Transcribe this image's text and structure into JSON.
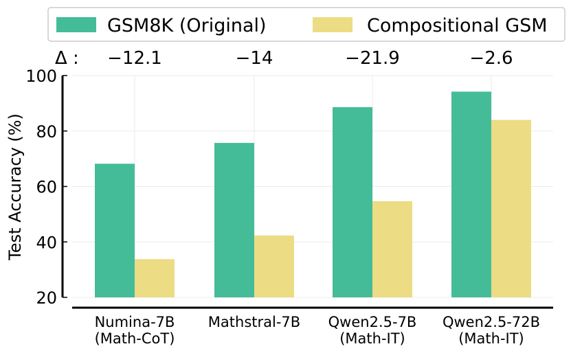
{
  "chart_data": {
    "type": "bar",
    "title": "",
    "xlabel": "",
    "ylabel": "Test Accuracy (%)",
    "ylim": [
      20,
      100
    ],
    "yticks": [
      "20",
      "40",
      "60",
      "80",
      "100"
    ],
    "grid": true,
    "legend_position": "top",
    "categories": [
      [
        "Numina-7B",
        "(Math-CoT)"
      ],
      [
        "Mathstral-7B",
        ""
      ],
      [
        "Qwen2.5-7B",
        "(Math-IT)"
      ],
      [
        "Qwen2.5-72B",
        "(Math-IT)"
      ]
    ],
    "series": [
      {
        "name": "GSM8K (Original)",
        "color": "#45bc98",
        "values": [
          68.2,
          75.7,
          88.6,
          94.2
        ]
      },
      {
        "name": "Compositional GSM",
        "color": "#ecdc84",
        "values": [
          33.8,
          42.3,
          54.7,
          84.0
        ]
      }
    ],
    "delta_label": "Δ :",
    "deltas": [
      "−12.1",
      "−14",
      "−21.9",
      "−2.6"
    ]
  }
}
